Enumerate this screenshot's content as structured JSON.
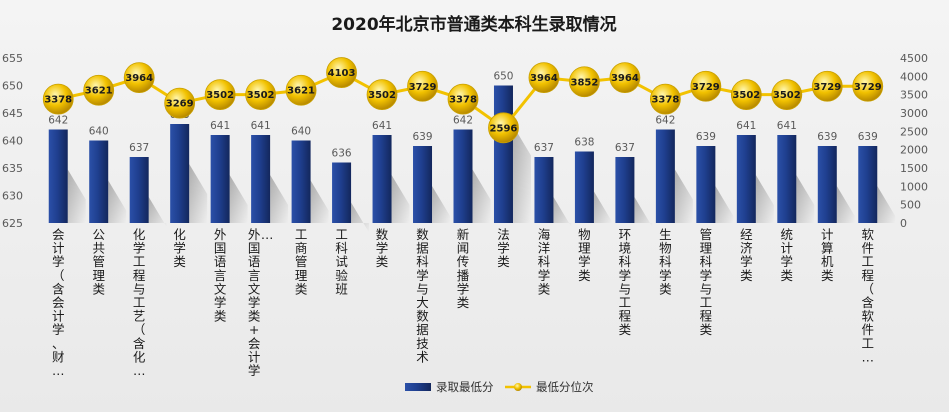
{
  "chart_data": {
    "type": "bar",
    "title": "2020年北京市普通类本科生录取情况",
    "categories": [
      "会计学（含会计学、财…",
      "公共管理类",
      "化学工程与工艺（含化…",
      "化学类",
      "外国语言文学类",
      "外国语言文学类+会计学…",
      "工商管理类",
      "工科试验班",
      "数学类",
      "数据科学与大数据技术",
      "新闻传播学类",
      "法学类",
      "海洋科学类",
      "物理学类",
      "环境科学与工程类",
      "生物科学类",
      "管理科学与工程类",
      "经济学类",
      "统计学类",
      "计算机类",
      "软件工程（含软件工…"
    ],
    "series": [
      {
        "name": "录取最低分",
        "type": "bar",
        "axis": "left",
        "color": "#1f3f8f",
        "values": [
          642,
          640,
          637,
          643,
          641,
          641,
          640,
          636,
          641,
          639,
          642,
          650,
          637,
          638,
          637,
          642,
          639,
          641,
          641,
          639,
          639
        ]
      },
      {
        "name": "最低分位次",
        "type": "line",
        "axis": "right",
        "color": "#f2c200",
        "values": [
          3378,
          3621,
          3964,
          3269,
          3502,
          3502,
          3621,
          4103,
          3502,
          3729,
          3378,
          2596,
          3964,
          3852,
          3964,
          3378,
          3729,
          3502,
          3502,
          3729,
          3729
        ]
      }
    ],
    "ylim": [
      625,
      655
    ],
    "yticks": [
      625,
      630,
      635,
      640,
      645,
      650,
      655
    ],
    "y2lim": [
      0,
      4500
    ],
    "y2ticks": [
      0,
      500,
      1000,
      1500,
      2000,
      2500,
      3000,
      3500,
      4000,
      4500
    ],
    "xlabel": "",
    "ylabel": "",
    "grid": false,
    "legend": "bottom"
  }
}
